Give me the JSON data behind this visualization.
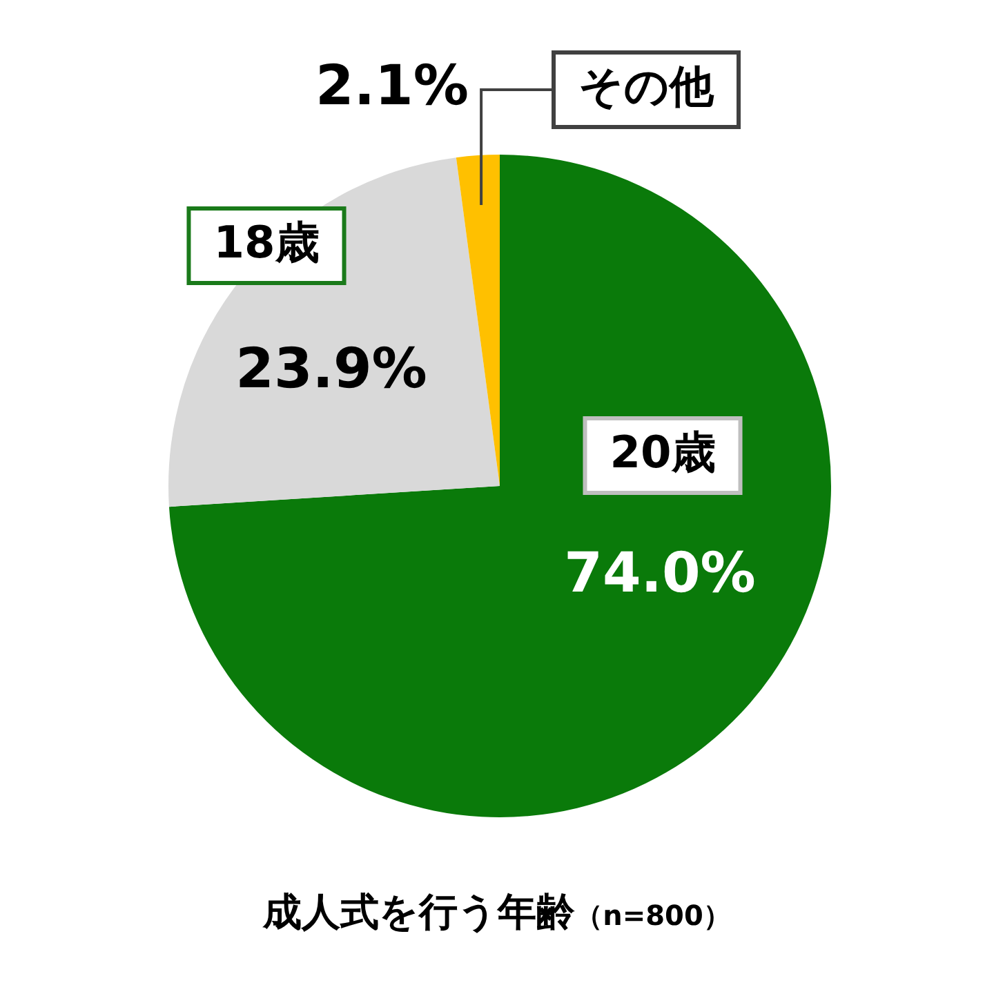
{
  "chart_data": {
    "type": "pie",
    "title": "成人式を行う年齢",
    "subtitle": "（n=800）",
    "categories": [
      "20歳",
      "18歳",
      "その他"
    ],
    "values": [
      74.0,
      23.9,
      2.1
    ],
    "value_labels": [
      "74.0%",
      "23.9%",
      "2.1%"
    ],
    "colors": [
      "#0a7a0a",
      "#d9d9d9",
      "#ffc000"
    ],
    "legend": false
  }
}
